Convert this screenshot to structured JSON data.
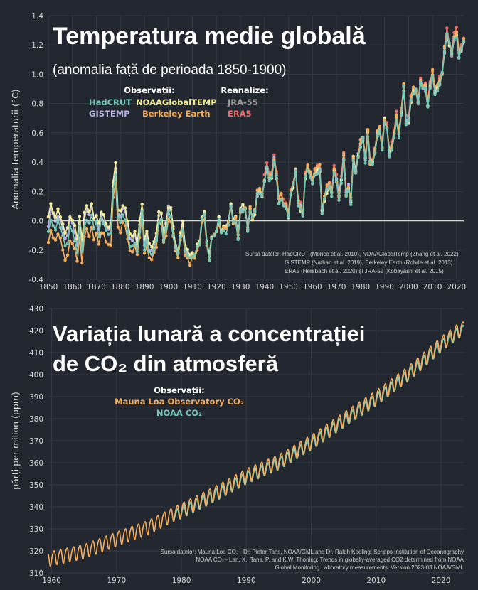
{
  "chart_data": [
    {
      "type": "line",
      "title": "Temperatura medie globală",
      "subtitle": "(anomalia față de perioada 1850-1900)",
      "ylabel": "Anomalia temperaturii (°C)",
      "xlabel": "",
      "xlim": [
        1850,
        2023
      ],
      "ylim": [
        -0.4,
        1.4
      ],
      "xticks": [
        "1850",
        "1860",
        "1870",
        "1880",
        "1890",
        "1900",
        "1910",
        "1920",
        "1930",
        "1940",
        "1950",
        "1960",
        "1970",
        "1980",
        "1990",
        "2000",
        "2010",
        "2020"
      ],
      "yticks": [
        "-0.4",
        "-0.2",
        "0.0",
        "0.2",
        "0.4",
        "0.6",
        "0.8",
        "1.0",
        "1.2",
        "1.4"
      ],
      "legend": {
        "observations_title": "Observații:",
        "reanalysis_title": "Reanalize:",
        "entries": [
          {
            "name": "HadCRUT",
            "color": "#74c8b6"
          },
          {
            "name": "NOAAGlobalTEMP",
            "color": "#f2ee9a"
          },
          {
            "name": "GISTEMP",
            "color": "#b9b0e4"
          },
          {
            "name": "Berkeley Earth",
            "color": "#f5ad5b"
          },
          {
            "name": "JRA-55",
            "color": "#9a9a9a"
          },
          {
            "name": "ERA5",
            "color": "#f16a6a"
          }
        ]
      },
      "anchors": [
        [
          1850,
          -0.08
        ],
        [
          1851,
          0.02
        ],
        [
          1852,
          -0.02
        ],
        [
          1853,
          -0.05
        ],
        [
          1854,
          -0.01
        ],
        [
          1855,
          -0.04
        ],
        [
          1856,
          -0.12
        ],
        [
          1857,
          -0.17
        ],
        [
          1858,
          -0.14
        ],
        [
          1859,
          -0.04
        ],
        [
          1860,
          -0.07
        ],
        [
          1861,
          -0.12
        ],
        [
          1862,
          -0.22
        ],
        [
          1863,
          -0.05
        ],
        [
          1864,
          -0.21
        ],
        [
          1865,
          -0.03
        ],
        [
          1866,
          0.02
        ],
        [
          1867,
          -0.02
        ],
        [
          1868,
          0.04
        ],
        [
          1869,
          -0.04
        ],
        [
          1870,
          -0.02
        ],
        [
          1871,
          -0.09
        ],
        [
          1872,
          0.0
        ],
        [
          1873,
          -0.03
        ],
        [
          1874,
          -0.08
        ],
        [
          1875,
          -0.1
        ],
        [
          1876,
          -0.09
        ],
        [
          1877,
          0.2
        ],
        [
          1878,
          0.32
        ],
        [
          1879,
          0.02
        ],
        [
          1880,
          -0.01
        ],
        [
          1881,
          0.06
        ],
        [
          1882,
          0.02
        ],
        [
          1883,
          -0.06
        ],
        [
          1884,
          -0.16
        ],
        [
          1885,
          -0.17
        ],
        [
          1886,
          -0.14
        ],
        [
          1887,
          -0.2
        ],
        [
          1888,
          -0.07
        ],
        [
          1889,
          0.06
        ],
        [
          1890,
          -0.19
        ],
        [
          1891,
          -0.12
        ],
        [
          1892,
          -0.22
        ],
        [
          1893,
          -0.24
        ],
        [
          1894,
          -0.2
        ],
        [
          1895,
          -0.15
        ],
        [
          1896,
          0.0
        ],
        [
          1897,
          0.02
        ],
        [
          1898,
          -0.14
        ],
        [
          1899,
          -0.05
        ],
        [
          1900,
          0.06
        ],
        [
          1901,
          0.03
        ],
        [
          1902,
          -0.1
        ],
        [
          1903,
          -0.2
        ],
        [
          1904,
          -0.24
        ],
        [
          1905,
          -0.11
        ],
        [
          1906,
          -0.06
        ],
        [
          1907,
          -0.22
        ],
        [
          1908,
          -0.25
        ],
        [
          1909,
          -0.27
        ],
        [
          1910,
          -0.24
        ],
        [
          1911,
          -0.25
        ],
        [
          1912,
          -0.19
        ],
        [
          1913,
          -0.17
        ],
        [
          1914,
          0.01
        ],
        [
          1915,
          0.04
        ],
        [
          1916,
          -0.17
        ],
        [
          1917,
          -0.26
        ],
        [
          1918,
          -0.12
        ],
        [
          1919,
          -0.1
        ],
        [
          1920,
          -0.08
        ],
        [
          1921,
          0.0
        ],
        [
          1922,
          -0.09
        ],
        [
          1923,
          -0.07
        ],
        [
          1924,
          -0.07
        ],
        [
          1925,
          -0.02
        ],
        [
          1926,
          0.09
        ],
        [
          1927,
          -0.01
        ],
        [
          1928,
          0.01
        ],
        [
          1929,
          -0.13
        ],
        [
          1930,
          0.06
        ],
        [
          1931,
          0.08
        ],
        [
          1932,
          0.06
        ],
        [
          1933,
          -0.08
        ],
        [
          1934,
          0.06
        ],
        [
          1935,
          0.01
        ],
        [
          1936,
          0.05
        ],
        [
          1937,
          0.17
        ],
        [
          1938,
          0.2
        ],
        [
          1939,
          0.16
        ],
        [
          1940,
          0.27
        ],
        [
          1941,
          0.36
        ],
        [
          1942,
          0.29
        ],
        [
          1943,
          0.3
        ],
        [
          1944,
          0.42
        ],
        [
          1945,
          0.3
        ],
        [
          1946,
          0.12
        ],
        [
          1947,
          0.15
        ],
        [
          1948,
          0.11
        ],
        [
          1949,
          0.1
        ],
        [
          1950,
          0.03
        ],
        [
          1951,
          0.19
        ],
        [
          1952,
          0.24
        ],
        [
          1953,
          0.33
        ],
        [
          1954,
          0.12
        ],
        [
          1955,
          0.08
        ],
        [
          1956,
          0.03
        ],
        [
          1957,
          0.29
        ],
        [
          1958,
          0.36
        ],
        [
          1959,
          0.31
        ],
        [
          1960,
          0.26
        ],
        [
          1961,
          0.33
        ],
        [
          1962,
          0.33
        ],
        [
          1963,
          0.34
        ],
        [
          1964,
          0.06
        ],
        [
          1965,
          0.13
        ],
        [
          1966,
          0.2
        ],
        [
          1967,
          0.23
        ],
        [
          1968,
          0.18
        ],
        [
          1969,
          0.33
        ],
        [
          1970,
          0.27
        ],
        [
          1971,
          0.15
        ],
        [
          1972,
          0.26
        ],
        [
          1973,
          0.42
        ],
        [
          1974,
          0.17
        ],
        [
          1975,
          0.22
        ],
        [
          1976,
          0.13
        ],
        [
          1977,
          0.42
        ],
        [
          1978,
          0.32
        ],
        [
          1979,
          0.43
        ],
        [
          1980,
          0.52
        ],
        [
          1981,
          0.55
        ],
        [
          1982,
          0.41
        ],
        [
          1983,
          0.59
        ],
        [
          1984,
          0.39
        ],
        [
          1985,
          0.38
        ],
        [
          1986,
          0.45
        ],
        [
          1987,
          0.58
        ],
        [
          1988,
          0.6
        ],
        [
          1989,
          0.5
        ],
        [
          1990,
          0.68
        ],
        [
          1991,
          0.64
        ],
        [
          1992,
          0.45
        ],
        [
          1993,
          0.49
        ],
        [
          1994,
          0.58
        ],
        [
          1995,
          0.7
        ],
        [
          1996,
          0.58
        ],
        [
          1997,
          0.72
        ],
        [
          1998,
          0.9
        ],
        [
          1999,
          0.67
        ],
        [
          2000,
          0.68
        ],
        [
          2001,
          0.82
        ],
        [
          2002,
          0.88
        ],
        [
          2003,
          0.88
        ],
        [
          2004,
          0.8
        ],
        [
          2005,
          0.94
        ],
        [
          2006,
          0.89
        ],
        [
          2007,
          0.9
        ],
        [
          2008,
          0.79
        ],
        [
          2009,
          0.91
        ],
        [
          2010,
          0.99
        ],
        [
          2011,
          0.87
        ],
        [
          2012,
          0.9
        ],
        [
          2013,
          0.94
        ],
        [
          2014,
          1.0
        ],
        [
          2015,
          1.15
        ],
        [
          2016,
          1.27
        ],
        [
          2017,
          1.2
        ],
        [
          2018,
          1.13
        ],
        [
          2019,
          1.24
        ],
        [
          2020,
          1.27
        ],
        [
          2021,
          1.12
        ],
        [
          2022,
          1.16
        ],
        [
          2023,
          1.22
        ]
      ],
      "source_lines": [
        "Sursa datelor:  HadCRUT (Morice et al. 2010), NOAAGlobalTemp (Zhang et al. 2022)",
        "GISTEMP (Nathan et al. 2019), Berkeley Earth (Rohde et al. 2013)",
        "ERA5 (Hersbach et al. 2020) și JRA-55 (Kobayashi et al. 2015)"
      ]
    },
    {
      "type": "line",
      "title_line1": "Variația lunară a concentrației",
      "title_line2": "de CO₂ din atmosferă",
      "ylabel": "părți per milion (ppm)",
      "xlabel": "",
      "xlim": [
        1959.5,
        2023.5
      ],
      "ylim": [
        310,
        430
      ],
      "xticks": [
        "1960",
        "1970",
        "1980",
        "1990",
        "2000",
        "2010",
        "2020"
      ],
      "yticks": [
        "310",
        "320",
        "330",
        "340",
        "350",
        "360",
        "370",
        "380",
        "390",
        "400",
        "410",
        "420",
        "430"
      ],
      "legend": {
        "observations_title": "Observații:",
        "entries": [
          {
            "name": "Mauna Loa Observatory CO₂",
            "color": "#f5ad5b"
          },
          {
            "name": "NOAA CO₂",
            "color": "#74c8b6"
          }
        ]
      },
      "trend_anchors": [
        [
          1959.0,
          315.98
        ],
        [
          1960.0,
          316.91
        ],
        [
          1965.0,
          320.04
        ],
        [
          1970.0,
          325.68
        ],
        [
          1975.0,
          331.11
        ],
        [
          1980.0,
          338.75
        ],
        [
          1985.0,
          346.12
        ],
        [
          1990.0,
          354.39
        ],
        [
          1995.0,
          360.82
        ],
        [
          2000.0,
          369.71
        ],
        [
          2005.0,
          379.98
        ],
        [
          2010.0,
          389.9
        ],
        [
          2015.0,
          401.01
        ],
        [
          2020.0,
          414.24
        ],
        [
          2023.0,
          421.08
        ]
      ],
      "seasonal_amplitude_ppm": 3.2,
      "noaa_start_year": 1979,
      "source_lines": [
        "Sursa datelor: Mauna Loa CO₂ - Dr. Pieter Tans, NOAA/GML and Dr. Ralph Keeling, Scripps Institution of Oceanography",
        "NOAA CO₂ - Lan, X., Tans, P. and K.W. Thoning: Trends in globally-averaged CO2 determined from NOAA",
        "Global Monitoring Laboratory measurements. Version 2023-03 NOAA/GML"
      ]
    }
  ]
}
